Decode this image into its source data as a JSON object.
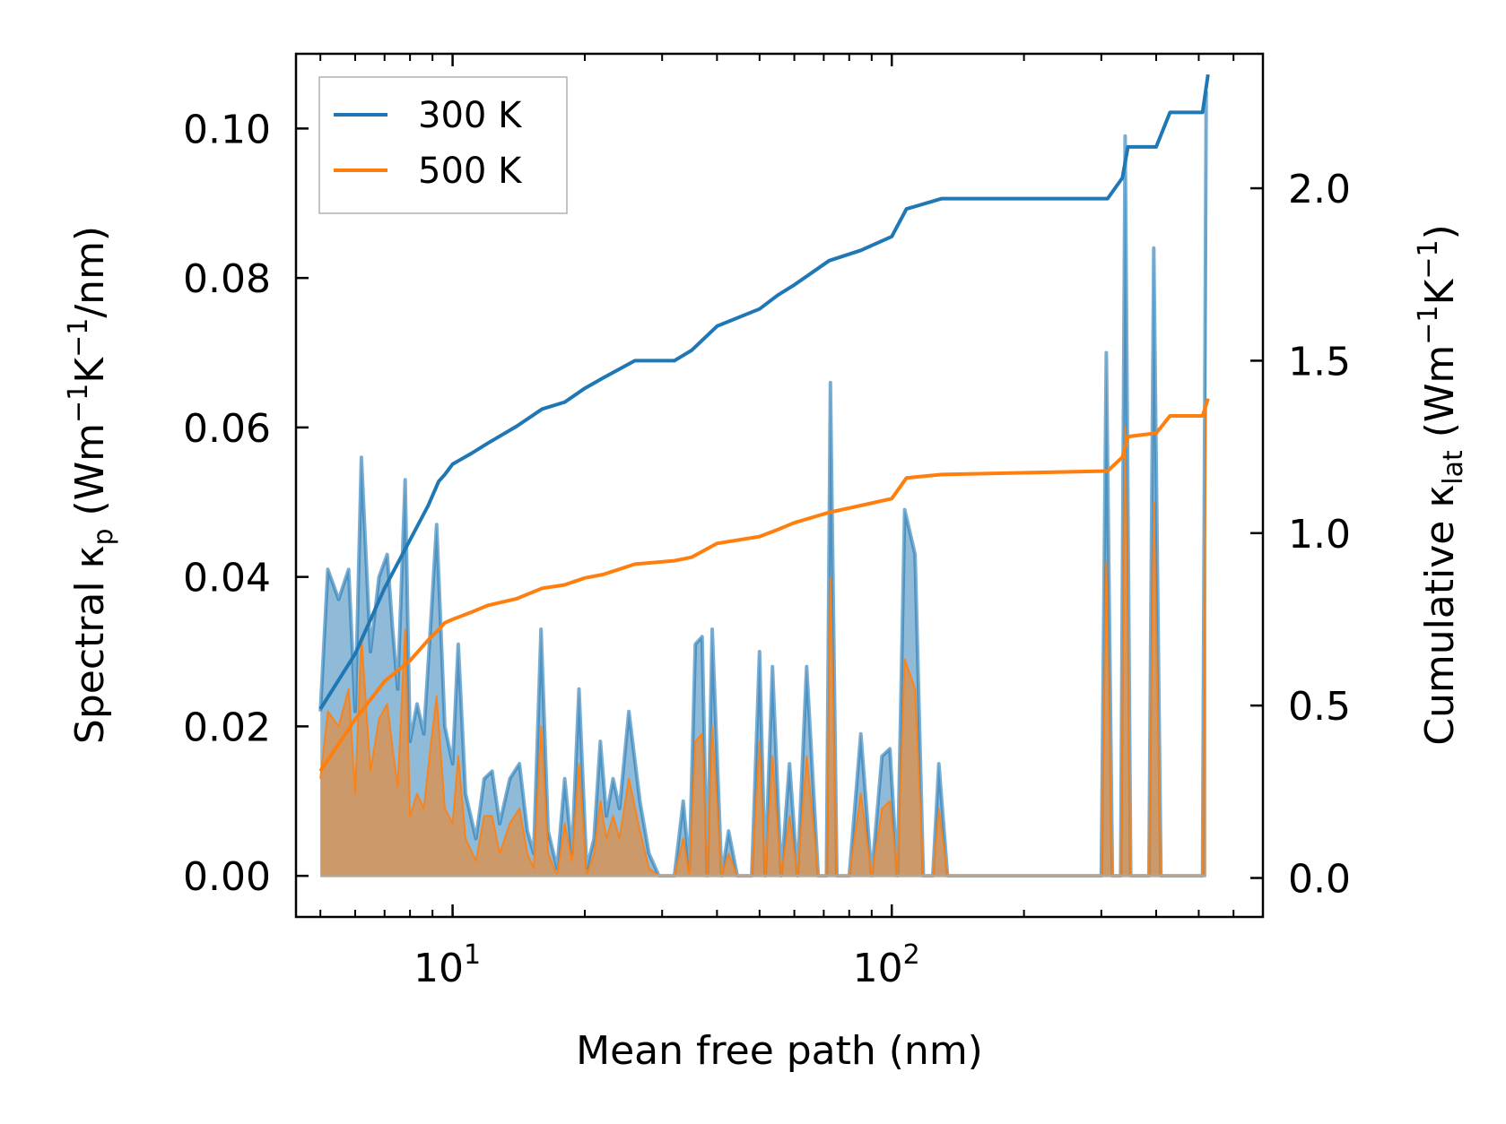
{
  "chart_data": {
    "type": "line",
    "xlabel": "Mean free path (nm)",
    "ylabel_left": {
      "text": "Spectral κ",
      "sub": "p",
      "unit_open": " (Wm",
      "sup1": "−1",
      "unit_mid": "K",
      "sup2": "−1",
      "unit_close": "/nm)"
    },
    "ylabel_right": {
      "text": "Cumulative κ",
      "sub": "lat",
      "unit_open": " (Wm",
      "sup1": "−1",
      "unit_mid": "K",
      "sup2": "−1",
      "unit_close": ")"
    },
    "x_scale": "log",
    "xlim": [
      4.4,
      700
    ],
    "ylim_left": [
      -0.0055,
      0.11
    ],
    "ylim_right": [
      -0.113,
      2.39
    ],
    "x_major_ticks": [
      10,
      100
    ],
    "x_tick_labels": [
      {
        "base": "10",
        "exp": "1"
      },
      {
        "base": "10",
        "exp": "2"
      }
    ],
    "y_left_ticks": [
      0.0,
      0.02,
      0.04,
      0.06,
      0.08,
      0.1
    ],
    "y_left_tick_labels": [
      "0.00",
      "0.02",
      "0.04",
      "0.06",
      "0.08",
      "0.10"
    ],
    "y_right_ticks": [
      0.0,
      0.5,
      1.0,
      1.5,
      2.0
    ],
    "y_right_tick_labels": [
      "0.0",
      "0.5",
      "1.0",
      "1.5",
      "2.0"
    ],
    "legend_position": "top-left",
    "series": [
      {
        "name": "300 K",
        "color": "#1f77b4",
        "cumulative": [
          [
            5.0,
            0.49
          ],
          [
            6.0,
            0.65
          ],
          [
            7.0,
            0.84
          ],
          [
            8.0,
            0.98
          ],
          [
            8.8,
            1.08
          ],
          [
            9.3,
            1.15
          ],
          [
            9.6,
            1.17
          ],
          [
            10.0,
            1.2
          ],
          [
            11.0,
            1.23
          ],
          [
            12.0,
            1.26
          ],
          [
            14.0,
            1.31
          ],
          [
            16.0,
            1.36
          ],
          [
            18.0,
            1.38
          ],
          [
            20.0,
            1.42
          ],
          [
            22.0,
            1.45
          ],
          [
            26.0,
            1.5
          ],
          [
            32.0,
            1.5
          ],
          [
            35.0,
            1.53
          ],
          [
            40.0,
            1.6
          ],
          [
            50.0,
            1.65
          ],
          [
            55.0,
            1.69
          ],
          [
            60.0,
            1.72
          ],
          [
            72.0,
            1.79
          ],
          [
            85.0,
            1.82
          ],
          [
            100.0,
            1.86
          ],
          [
            108.0,
            1.94
          ],
          [
            130.0,
            1.97
          ],
          [
            310.0,
            1.97
          ],
          [
            335.0,
            2.03
          ],
          [
            345.0,
            2.12
          ],
          [
            400.0,
            2.12
          ],
          [
            430.0,
            2.22
          ],
          [
            510.0,
            2.22
          ],
          [
            525.0,
            2.33
          ]
        ],
        "spectral": [
          [
            5.0,
            0.022
          ],
          [
            5.2,
            0.041
          ],
          [
            5.5,
            0.037
          ],
          [
            5.8,
            0.041
          ],
          [
            6.0,
            0.022
          ],
          [
            6.2,
            0.056
          ],
          [
            6.5,
            0.03
          ],
          [
            6.8,
            0.04
          ],
          [
            7.1,
            0.043
          ],
          [
            7.3,
            0.033
          ],
          [
            7.5,
            0.025
          ],
          [
            7.8,
            0.053
          ],
          [
            8.0,
            0.018
          ],
          [
            8.3,
            0.023
          ],
          [
            8.6,
            0.019
          ],
          [
            8.9,
            0.033
          ],
          [
            9.2,
            0.047
          ],
          [
            9.6,
            0.02
          ],
          [
            10.0,
            0.015
          ],
          [
            10.3,
            0.031
          ],
          [
            10.7,
            0.011
          ],
          [
            11.3,
            0.005
          ],
          [
            11.8,
            0.013
          ],
          [
            12.3,
            0.014
          ],
          [
            12.8,
            0.007
          ],
          [
            13.5,
            0.013
          ],
          [
            14.2,
            0.015
          ],
          [
            14.8,
            0.006
          ],
          [
            15.3,
            0.003
          ],
          [
            15.9,
            0.033
          ],
          [
            16.5,
            0.006
          ],
          [
            17.3,
            0.001
          ],
          [
            18.0,
            0.013
          ],
          [
            18.7,
            0.003
          ],
          [
            19.4,
            0.025
          ],
          [
            20.2,
            0.001
          ],
          [
            21.0,
            0.005
          ],
          [
            21.7,
            0.018
          ],
          [
            22.4,
            0.008
          ],
          [
            23.2,
            0.013
          ],
          [
            24.0,
            0.009
          ],
          [
            25.2,
            0.022
          ],
          [
            26.7,
            0.01
          ],
          [
            28.0,
            0.003
          ],
          [
            29.5,
            0.0
          ],
          [
            32.0,
            0.0
          ],
          [
            33.5,
            0.01
          ],
          [
            34.6,
            0.001
          ],
          [
            35.7,
            0.031
          ],
          [
            37.0,
            0.032
          ],
          [
            38.0,
            0.0
          ],
          [
            39.0,
            0.033
          ],
          [
            41.0,
            0.0
          ],
          [
            42.5,
            0.006
          ],
          [
            44.5,
            0.0
          ],
          [
            48.0,
            0.0
          ],
          [
            50.0,
            0.03
          ],
          [
            51.5,
            0.0
          ],
          [
            53.5,
            0.028
          ],
          [
            56.0,
            0.0
          ],
          [
            58.5,
            0.015
          ],
          [
            61.0,
            0.0
          ],
          [
            64.0,
            0.028
          ],
          [
            68.0,
            0.0
          ],
          [
            71.0,
            0.0
          ],
          [
            72.5,
            0.066
          ],
          [
            75.0,
            0.0
          ],
          [
            80.0,
            0.0
          ],
          [
            85.0,
            0.019
          ],
          [
            90.0,
            0.0
          ],
          [
            95.0,
            0.016
          ],
          [
            99.0,
            0.017
          ],
          [
            103.0,
            0.0
          ],
          [
            107.0,
            0.049
          ],
          [
            113.0,
            0.043
          ],
          [
            118.0,
            0.0
          ],
          [
            124.0,
            0.0
          ],
          [
            128.0,
            0.015
          ],
          [
            134.0,
            0.0
          ],
          [
            300.0,
            0.0
          ],
          [
            308.0,
            0.07
          ],
          [
            318.0,
            0.0
          ],
          [
            332.0,
            0.0
          ],
          [
            340.0,
            0.099
          ],
          [
            350.0,
            0.0
          ],
          [
            385.0,
            0.0
          ],
          [
            395.0,
            0.084
          ],
          [
            410.0,
            0.0
          ],
          [
            510.0,
            0.0
          ],
          [
            520.0,
            0.105
          ]
        ]
      },
      {
        "name": "500 K",
        "color": "#ff7f0e",
        "cumulative": [
          [
            5.0,
            0.31
          ],
          [
            6.0,
            0.46
          ],
          [
            7.0,
            0.57
          ],
          [
            8.0,
            0.63
          ],
          [
            8.8,
            0.69
          ],
          [
            9.3,
            0.72
          ],
          [
            9.6,
            0.74
          ],
          [
            10.0,
            0.75
          ],
          [
            11.0,
            0.77
          ],
          [
            12.0,
            0.79
          ],
          [
            14.0,
            0.81
          ],
          [
            16.0,
            0.84
          ],
          [
            18.0,
            0.85
          ],
          [
            20.0,
            0.87
          ],
          [
            22.0,
            0.88
          ],
          [
            26.0,
            0.91
          ],
          [
            32.0,
            0.92
          ],
          [
            35.0,
            0.93
          ],
          [
            40.0,
            0.97
          ],
          [
            50.0,
            0.99
          ],
          [
            55.0,
            1.01
          ],
          [
            60.0,
            1.03
          ],
          [
            72.0,
            1.06
          ],
          [
            85.0,
            1.08
          ],
          [
            100.0,
            1.1
          ],
          [
            108.0,
            1.16
          ],
          [
            130.0,
            1.17
          ],
          [
            310.0,
            1.18
          ],
          [
            335.0,
            1.22
          ],
          [
            345.0,
            1.28
          ],
          [
            400.0,
            1.29
          ],
          [
            430.0,
            1.34
          ],
          [
            510.0,
            1.34
          ],
          [
            525.0,
            1.39
          ]
        ],
        "spectral": [
          [
            5.0,
            0.013
          ],
          [
            5.2,
            0.022
          ],
          [
            5.5,
            0.02
          ],
          [
            5.8,
            0.025
          ],
          [
            6.0,
            0.011
          ],
          [
            6.2,
            0.032
          ],
          [
            6.5,
            0.014
          ],
          [
            6.8,
            0.021
          ],
          [
            7.1,
            0.023
          ],
          [
            7.3,
            0.017
          ],
          [
            7.5,
            0.012
          ],
          [
            7.8,
            0.033
          ],
          [
            8.0,
            0.008
          ],
          [
            8.3,
            0.011
          ],
          [
            8.6,
            0.009
          ],
          [
            8.9,
            0.017
          ],
          [
            9.2,
            0.024
          ],
          [
            9.6,
            0.009
          ],
          [
            10.0,
            0.007
          ],
          [
            10.3,
            0.016
          ],
          [
            10.7,
            0.005
          ],
          [
            11.3,
            0.002
          ],
          [
            11.8,
            0.008
          ],
          [
            12.3,
            0.008
          ],
          [
            12.8,
            0.003
          ],
          [
            13.5,
            0.007
          ],
          [
            14.2,
            0.009
          ],
          [
            14.8,
            0.003
          ],
          [
            15.3,
            0.001
          ],
          [
            15.9,
            0.02
          ],
          [
            16.5,
            0.003
          ],
          [
            17.3,
            0.0
          ],
          [
            18.0,
            0.007
          ],
          [
            18.7,
            0.002
          ],
          [
            19.4,
            0.015
          ],
          [
            20.2,
            0.0
          ],
          [
            21.0,
            0.003
          ],
          [
            21.7,
            0.01
          ],
          [
            22.4,
            0.005
          ],
          [
            23.2,
            0.008
          ],
          [
            24.0,
            0.005
          ],
          [
            25.2,
            0.013
          ],
          [
            26.7,
            0.006
          ],
          [
            28.0,
            0.001
          ],
          [
            29.5,
            0.0
          ],
          [
            32.0,
            0.0
          ],
          [
            33.5,
            0.005
          ],
          [
            34.6,
            0.0
          ],
          [
            35.7,
            0.018
          ],
          [
            37.0,
            0.019
          ],
          [
            38.0,
            0.0
          ],
          [
            39.0,
            0.02
          ],
          [
            41.0,
            0.0
          ],
          [
            42.5,
            0.003
          ],
          [
            44.5,
            0.0
          ],
          [
            48.0,
            0.0
          ],
          [
            50.0,
            0.018
          ],
          [
            51.5,
            0.0
          ],
          [
            53.5,
            0.016
          ],
          [
            56.0,
            0.0
          ],
          [
            58.5,
            0.008
          ],
          [
            61.0,
            0.0
          ],
          [
            64.0,
            0.016
          ],
          [
            68.0,
            0.0
          ],
          [
            71.0,
            0.0
          ],
          [
            72.5,
            0.04
          ],
          [
            75.0,
            0.0
          ],
          [
            80.0,
            0.0
          ],
          [
            85.0,
            0.011
          ],
          [
            90.0,
            0.0
          ],
          [
            95.0,
            0.009
          ],
          [
            99.0,
            0.01
          ],
          [
            103.0,
            0.0
          ],
          [
            107.0,
            0.029
          ],
          [
            113.0,
            0.025
          ],
          [
            118.0,
            0.0
          ],
          [
            124.0,
            0.0
          ],
          [
            128.0,
            0.009
          ],
          [
            134.0,
            0.0
          ],
          [
            300.0,
            0.0
          ],
          [
            308.0,
            0.042
          ],
          [
            318.0,
            0.0
          ],
          [
            332.0,
            0.0
          ],
          [
            340.0,
            0.06
          ],
          [
            350.0,
            0.0
          ],
          [
            385.0,
            0.0
          ],
          [
            395.0,
            0.05
          ],
          [
            410.0,
            0.0
          ],
          [
            510.0,
            0.0
          ],
          [
            520.0,
            0.063
          ]
        ]
      }
    ]
  }
}
